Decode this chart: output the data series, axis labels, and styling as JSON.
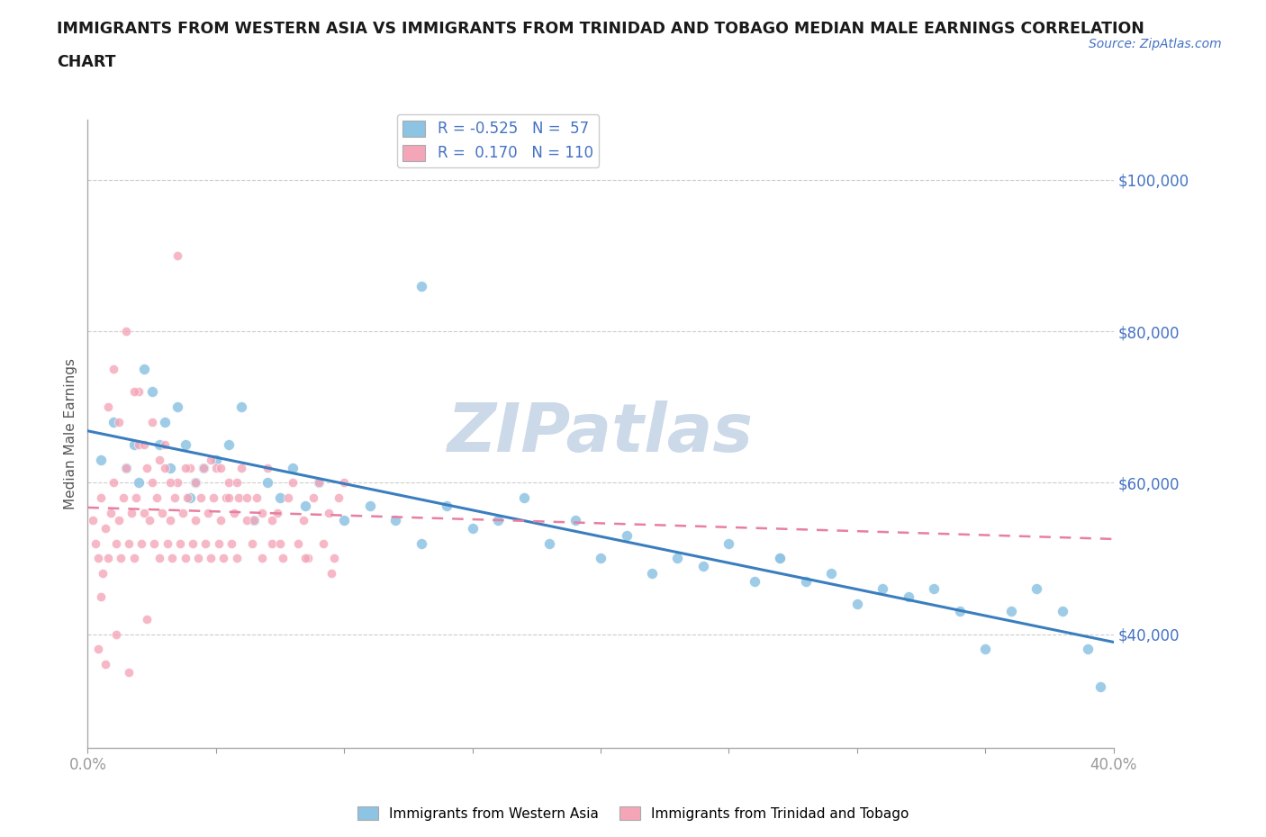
{
  "title_line1": "IMMIGRANTS FROM WESTERN ASIA VS IMMIGRANTS FROM TRINIDAD AND TOBAGO MEDIAN MALE EARNINGS CORRELATION",
  "title_line2": "CHART",
  "source": "Source: ZipAtlas.com",
  "ylabel": "Median Male Earnings",
  "xlim": [
    0.0,
    0.4
  ],
  "ylim": [
    25000,
    108000
  ],
  "yticks": [
    40000,
    60000,
    80000,
    100000
  ],
  "ytick_labels": [
    "$40,000",
    "$60,000",
    "$80,000",
    "$100,000"
  ],
  "xticks": [
    0.0,
    0.05,
    0.1,
    0.15,
    0.2,
    0.25,
    0.3,
    0.35,
    0.4
  ],
  "xtick_labels": [
    "0.0%",
    "",
    "",
    "",
    "",
    "",
    "",
    "",
    "40.0%"
  ],
  "legend_R1": "-0.525",
  "legend_N1": "57",
  "legend_R2": "0.170",
  "legend_N2": "110",
  "color_blue": "#8dc3e3",
  "color_pink": "#f4a6b8",
  "color_blue_line": "#3a7ebf",
  "color_pink_line": "#e87fa0",
  "color_ytick": "#4472c4",
  "watermark_color": "#ccd9e8",
  "background": "#ffffff",
  "blue_scatter_x": [
    0.005,
    0.01,
    0.015,
    0.018,
    0.02,
    0.022,
    0.025,
    0.028,
    0.03,
    0.032,
    0.035,
    0.038,
    0.04,
    0.042,
    0.045,
    0.05,
    0.055,
    0.06,
    0.065,
    0.07,
    0.075,
    0.08,
    0.085,
    0.09,
    0.1,
    0.11,
    0.12,
    0.13,
    0.14,
    0.15,
    0.16,
    0.17,
    0.18,
    0.19,
    0.2,
    0.21,
    0.22,
    0.23,
    0.24,
    0.25,
    0.26,
    0.27,
    0.28,
    0.29,
    0.3,
    0.31,
    0.32,
    0.33,
    0.34,
    0.35,
    0.36,
    0.37,
    0.38,
    0.39,
    0.395,
    0.13,
    0.27
  ],
  "blue_scatter_y": [
    63000,
    68000,
    62000,
    65000,
    60000,
    75000,
    72000,
    65000,
    68000,
    62000,
    70000,
    65000,
    58000,
    60000,
    62000,
    63000,
    65000,
    70000,
    55000,
    60000,
    58000,
    62000,
    57000,
    60000,
    55000,
    57000,
    55000,
    52000,
    57000,
    54000,
    55000,
    58000,
    52000,
    55000,
    50000,
    53000,
    48000,
    50000,
    49000,
    52000,
    47000,
    50000,
    47000,
    48000,
    44000,
    46000,
    45000,
    46000,
    43000,
    38000,
    43000,
    46000,
    43000,
    38000,
    33000,
    86000,
    50000
  ],
  "pink_scatter_x": [
    0.002,
    0.003,
    0.004,
    0.005,
    0.006,
    0.007,
    0.008,
    0.009,
    0.01,
    0.011,
    0.012,
    0.013,
    0.014,
    0.015,
    0.016,
    0.017,
    0.018,
    0.019,
    0.02,
    0.021,
    0.022,
    0.023,
    0.024,
    0.025,
    0.026,
    0.027,
    0.028,
    0.029,
    0.03,
    0.031,
    0.032,
    0.033,
    0.034,
    0.035,
    0.036,
    0.037,
    0.038,
    0.039,
    0.04,
    0.041,
    0.042,
    0.043,
    0.044,
    0.045,
    0.046,
    0.047,
    0.048,
    0.049,
    0.05,
    0.051,
    0.052,
    0.053,
    0.054,
    0.055,
    0.056,
    0.057,
    0.058,
    0.059,
    0.06,
    0.062,
    0.064,
    0.066,
    0.068,
    0.07,
    0.072,
    0.074,
    0.076,
    0.078,
    0.08,
    0.082,
    0.084,
    0.086,
    0.088,
    0.09,
    0.092,
    0.094,
    0.096,
    0.098,
    0.1,
    0.01,
    0.015,
    0.02,
    0.025,
    0.03,
    0.008,
    0.012,
    0.018,
    0.022,
    0.028,
    0.032,
    0.038,
    0.042,
    0.048,
    0.052,
    0.058,
    0.062,
    0.068,
    0.072,
    0.005,
    0.035,
    0.055,
    0.065,
    0.075,
    0.085,
    0.095,
    0.004,
    0.007,
    0.011,
    0.016,
    0.023
  ],
  "pink_scatter_y": [
    55000,
    52000,
    50000,
    58000,
    48000,
    54000,
    50000,
    56000,
    60000,
    52000,
    55000,
    50000,
    58000,
    62000,
    52000,
    56000,
    50000,
    58000,
    65000,
    52000,
    56000,
    62000,
    55000,
    60000,
    52000,
    58000,
    50000,
    56000,
    62000,
    52000,
    55000,
    50000,
    58000,
    60000,
    52000,
    56000,
    50000,
    58000,
    62000,
    52000,
    55000,
    50000,
    58000,
    62000,
    52000,
    56000,
    50000,
    58000,
    62000,
    52000,
    55000,
    50000,
    58000,
    60000,
    52000,
    56000,
    50000,
    58000,
    62000,
    55000,
    52000,
    58000,
    50000,
    62000,
    52000,
    56000,
    50000,
    58000,
    60000,
    52000,
    55000,
    50000,
    58000,
    60000,
    52000,
    56000,
    50000,
    58000,
    60000,
    75000,
    80000,
    72000,
    68000,
    65000,
    70000,
    68000,
    72000,
    65000,
    63000,
    60000,
    62000,
    60000,
    63000,
    62000,
    60000,
    58000,
    56000,
    55000,
    45000,
    90000,
    58000,
    55000,
    52000,
    50000,
    48000,
    38000,
    36000,
    40000,
    35000,
    42000
  ]
}
